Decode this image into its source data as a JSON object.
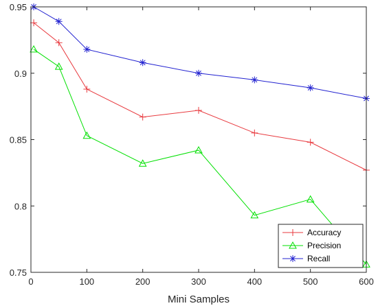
{
  "chart_data": {
    "type": "line",
    "title": "",
    "xlabel": "Mini Samples",
    "ylabel": "",
    "xlim": [
      0,
      600
    ],
    "ylim": [
      0.75,
      0.95
    ],
    "x_ticks": [
      0,
      100,
      200,
      300,
      400,
      500,
      600
    ],
    "y_ticks": [
      0.75,
      0.8,
      0.85,
      0.9,
      0.95
    ],
    "grid": false,
    "legend_position": "bottom-right",
    "x": [
      5,
      50,
      100,
      200,
      300,
      400,
      500,
      600
    ],
    "series": [
      {
        "name": "Accuracy",
        "color": "#e8383d",
        "marker": "plus",
        "values": [
          0.938,
          0.923,
          0.888,
          0.867,
          0.872,
          0.855,
          0.848,
          0.827
        ]
      },
      {
        "name": "Precision",
        "color": "#00e000",
        "marker": "triangle",
        "values": [
          0.918,
          0.905,
          0.853,
          0.832,
          0.842,
          0.793,
          0.805,
          0.756
        ]
      },
      {
        "name": "Recall",
        "color": "#2020d0",
        "marker": "asterisk",
        "values": [
          0.95,
          0.939,
          0.918,
          0.908,
          0.9,
          0.895,
          0.889,
          0.881
        ]
      }
    ]
  }
}
